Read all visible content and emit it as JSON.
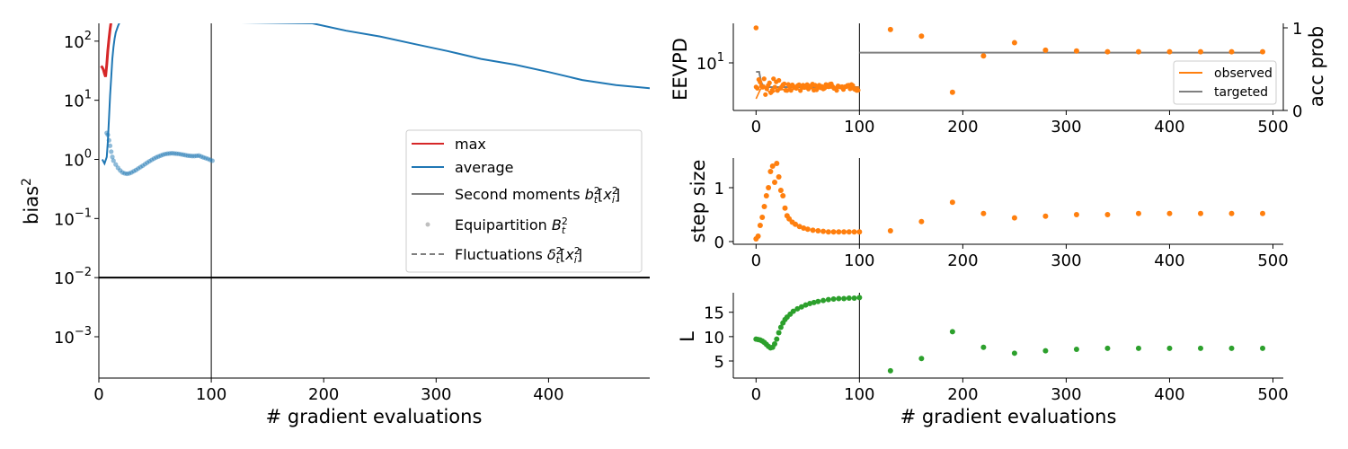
{
  "chart_data": [
    {
      "type": "line",
      "xlabel": "# gradient evaluations",
      "ylabel": "bias",
      "ylabel_superscript": "2",
      "yscale": "log",
      "xlim": [
        0,
        490
      ],
      "ylim": [
        0.0002,
        200
      ],
      "xticks": [
        {
          "v": 0,
          "label": "0"
        },
        {
          "v": 100,
          "label": "100"
        },
        {
          "v": 200,
          "label": "200"
        },
        {
          "v": 300,
          "label": "300"
        },
        {
          "v": 400,
          "label": "400"
        }
      ],
      "yticks": [
        {
          "v": 100,
          "base": "10",
          "exp": "2"
        },
        {
          "v": 10,
          "base": "10",
          "exp": "1"
        },
        {
          "v": 1,
          "base": "10",
          "exp": "0"
        },
        {
          "v": 0.1,
          "base": "10",
          "exp": "−1"
        },
        {
          "v": 0.01,
          "base": "10",
          "exp": "−2"
        },
        {
          "v": 0.001,
          "base": "10",
          "exp": "−3"
        }
      ],
      "vline_x": 100,
      "hline_y": 0.01,
      "colors": {
        "max": "#d62728",
        "average": "#1f77b4",
        "second": "#7f7f7f",
        "equip": "#bfbfbf",
        "fluct": "#7f7f7f"
      },
      "legend_position": "center-right",
      "legend": {
        "max": "max",
        "average": "average",
        "second_moments": "Second moments",
        "equipartition": "Equipartition",
        "fluctuations": "Fluctuations"
      },
      "series": [
        {
          "name": "max",
          "x": [
            2,
            3,
            4,
            5,
            6,
            7,
            8,
            9,
            10,
            11
          ],
          "y": [
            38,
            36,
            33,
            28,
            25,
            40,
            70,
            110,
            160,
            220
          ]
        },
        {
          "name": "average",
          "x": [
            3,
            5,
            7,
            8,
            9,
            10,
            11,
            12,
            13,
            14,
            15,
            17,
            19,
            190,
            220,
            250,
            280,
            310,
            340,
            370,
            400,
            430,
            460,
            490
          ],
          "y": [
            1.0,
            0.85,
            1.1,
            2.0,
            5.0,
            12,
            25,
            50,
            80,
            110,
            140,
            180,
            220,
            200,
            150,
            120,
            90,
            68,
            50,
            40,
            30,
            22,
            18,
            16
          ]
        },
        {
          "name": "average (dots)",
          "x": [
            7,
            8,
            9,
            10,
            11,
            12,
            13,
            15,
            17,
            19,
            21,
            23,
            25,
            27,
            29,
            31,
            33,
            35,
            37,
            39,
            41,
            43,
            45,
            47,
            49,
            51,
            53,
            55,
            57,
            59,
            61,
            63,
            65,
            67,
            69,
            71,
            73,
            75,
            77,
            79,
            81,
            83,
            85,
            87,
            89,
            91,
            93,
            95,
            97,
            99,
            101
          ],
          "y": [
            2.8,
            2.6,
            2.1,
            1.7,
            1.35,
            1.1,
            0.95,
            0.82,
            0.72,
            0.65,
            0.6,
            0.58,
            0.57,
            0.58,
            0.6,
            0.63,
            0.66,
            0.7,
            0.74,
            0.78,
            0.83,
            0.88,
            0.93,
            0.98,
            1.03,
            1.08,
            1.12,
            1.16,
            1.2,
            1.23,
            1.25,
            1.26,
            1.27,
            1.26,
            1.25,
            1.24,
            1.22,
            1.2,
            1.18,
            1.16,
            1.15,
            1.14,
            1.14,
            1.15,
            1.16,
            1.12,
            1.08,
            1.05,
            1.02,
            0.98,
            0.95
          ]
        }
      ]
    },
    {
      "type": "scatter",
      "ylabel": "EEVPD",
      "ylabel_right": "acc prob",
      "ytick_left": {
        "base": "10",
        "exp": "1"
      },
      "yticks_right": [
        {
          "v": 0,
          "label": "0"
        },
        {
          "v": 1,
          "label": "1"
        }
      ],
      "xlim": [
        -22,
        510
      ],
      "xticks": [
        {
          "v": 0,
          "label": "0"
        },
        {
          "v": 100,
          "label": "100"
        },
        {
          "v": 200,
          "label": "200"
        },
        {
          "v": 300,
          "label": "300"
        },
        {
          "v": 400,
          "label": "400"
        },
        {
          "v": 500,
          "label": "500"
        }
      ],
      "vline_x": 100,
      "colors": {
        "observed": "#ff7f0e",
        "targeted": "#7f7f7f"
      },
      "legend_position": "right",
      "legend": {
        "observed": "observed",
        "targeted": "targeted"
      },
      "targeted_acc_prob": 0.7,
      "series": [
        {
          "name": "observed",
          "x": [
            130,
            160,
            190,
            220,
            250,
            280,
            310,
            340,
            370,
            400,
            430,
            460,
            490
          ],
          "acc_prob": [
            0.98,
            0.9,
            0.22,
            0.66,
            0.82,
            0.73,
            0.72,
            0.71,
            0.71,
            0.71,
            0.71,
            0.71,
            0.71
          ]
        }
      ]
    },
    {
      "type": "scatter",
      "ylabel": "step size",
      "xlim": [
        -22,
        510
      ],
      "ylim": [
        -0.05,
        1.55
      ],
      "yticks": [
        {
          "v": 0,
          "label": "0"
        },
        {
          "v": 1,
          "label": "1"
        }
      ],
      "xticks": [
        {
          "v": 0,
          "label": "0"
        },
        {
          "v": 100,
          "label": "100"
        },
        {
          "v": 200,
          "label": "200"
        },
        {
          "v": 300,
          "label": "300"
        },
        {
          "v": 400,
          "label": "400"
        },
        {
          "v": 500,
          "label": "500"
        }
      ],
      "vline_x": 100,
      "color": "#ff7f0e",
      "series": [
        {
          "name": "step size",
          "x": [
            0,
            2,
            4,
            6,
            8,
            10,
            12,
            14,
            16,
            18,
            20,
            22,
            24,
            26,
            28,
            30,
            32,
            35,
            38,
            42,
            46,
            50,
            55,
            60,
            65,
            70,
            75,
            80,
            85,
            90,
            95,
            100,
            130,
            160,
            190,
            220,
            250,
            280,
            310,
            340,
            370,
            400,
            430,
            460,
            490
          ],
          "y": [
            0.05,
            0.1,
            0.3,
            0.45,
            0.65,
            0.85,
            1.0,
            1.3,
            1.4,
            1.1,
            1.45,
            1.2,
            0.95,
            0.85,
            0.62,
            0.48,
            0.42,
            0.36,
            0.32,
            0.28,
            0.25,
            0.23,
            0.21,
            0.2,
            0.19,
            0.18,
            0.18,
            0.18,
            0.18,
            0.18,
            0.18,
            0.18,
            0.2,
            0.37,
            0.73,
            0.52,
            0.44,
            0.47,
            0.5,
            0.5,
            0.52,
            0.52,
            0.52,
            0.52,
            0.52
          ]
        }
      ]
    },
    {
      "type": "scatter",
      "xlabel": "# gradient evaluations",
      "ylabel": "L",
      "xlim": [
        -22,
        510
      ],
      "ylim": [
        1.5,
        19
      ],
      "yticks": [
        {
          "v": 5,
          "label": "5"
        },
        {
          "v": 10,
          "label": "10"
        },
        {
          "v": 15,
          "label": "15"
        }
      ],
      "xticks": [
        {
          "v": 0,
          "label": "0"
        },
        {
          "v": 100,
          "label": "100"
        },
        {
          "v": 200,
          "label": "200"
        },
        {
          "v": 300,
          "label": "300"
        },
        {
          "v": 400,
          "label": "400"
        },
        {
          "v": 500,
          "label": "500"
        }
      ],
      "vline_x": 100,
      "color": "#2ca02c",
      "series": [
        {
          "name": "L",
          "x": [
            0,
            2,
            4,
            6,
            8,
            10,
            12,
            14,
            16,
            18,
            20,
            22,
            24,
            26,
            28,
            30,
            33,
            36,
            40,
            44,
            48,
            52,
            56,
            60,
            65,
            70,
            75,
            80,
            85,
            90,
            95,
            100,
            130,
            160,
            190,
            220,
            250,
            280,
            310,
            340,
            370,
            400,
            430,
            460,
            490
          ],
          "y": [
            9.5,
            9.4,
            9.3,
            9.1,
            8.8,
            8.4,
            8.0,
            7.7,
            7.8,
            8.5,
            9.5,
            10.8,
            11.9,
            12.8,
            13.5,
            14.0,
            14.6,
            15.2,
            15.7,
            16.1,
            16.5,
            16.8,
            17.0,
            17.2,
            17.4,
            17.6,
            17.7,
            17.8,
            17.8,
            17.9,
            17.9,
            18.0,
            3.0,
            5.5,
            11.0,
            7.8,
            6.6,
            7.1,
            7.4,
            7.6,
            7.6,
            7.6,
            7.6,
            7.6,
            7.6
          ]
        }
      ]
    }
  ]
}
